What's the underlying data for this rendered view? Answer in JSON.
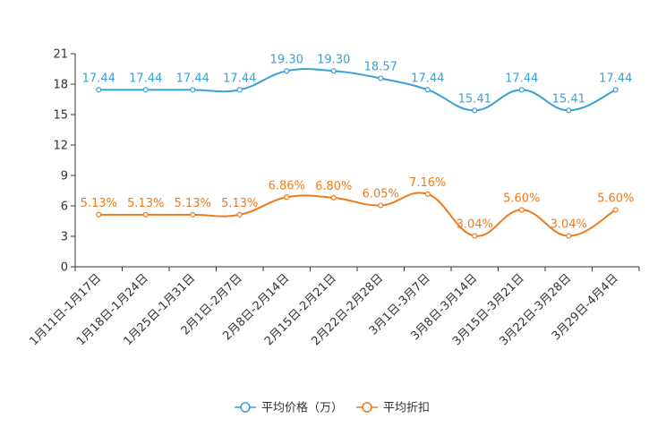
{
  "chart_data": {
    "type": "line",
    "title": "",
    "xlabel": "",
    "ylabel": "",
    "ylim": [
      0,
      21
    ],
    "yticks": [
      0,
      3,
      6,
      9,
      12,
      15,
      18,
      21
    ],
    "categories": [
      "1月11日-1月17日",
      "1月18日-1月24日",
      "1月25日-1月31日",
      "2月1日-2月7日",
      "2月8日-2月14日",
      "2月15日-2月21日",
      "2月22日-2月28日",
      "3月1日-3月7日",
      "3月8日-3月14日",
      "3月15日-3月21日",
      "3月22日-3月28日",
      "3月29日-4月4日"
    ],
    "series": [
      {
        "name": "平均价格（万）",
        "color": "#3a9fd6",
        "values": [
          17.44,
          17.44,
          17.44,
          17.44,
          19.3,
          19.3,
          18.57,
          17.44,
          15.41,
          17.44,
          15.41,
          17.44
        ],
        "labels": [
          "17.44",
          "17.44",
          "17.44",
          "17.44",
          "19.30",
          "19.30",
          "18.57",
          "17.44",
          "15.41",
          "17.44",
          "15.41",
          "17.44"
        ]
      },
      {
        "name": "平均折扣",
        "color": "#f07a1a",
        "values": [
          5.13,
          5.13,
          5.13,
          5.13,
          6.86,
          6.8,
          6.05,
          7.16,
          3.04,
          5.6,
          3.04,
          5.6
        ],
        "labels": [
          "5.13%",
          "5.13%",
          "5.13%",
          "5.13%",
          "6.86%",
          "6.80%",
          "6.05%",
          "7.16%",
          "3.04%",
          "5.60%",
          "3.04%",
          "5.60%"
        ]
      }
    ],
    "legend": "bottom-center",
    "grid": false
  }
}
